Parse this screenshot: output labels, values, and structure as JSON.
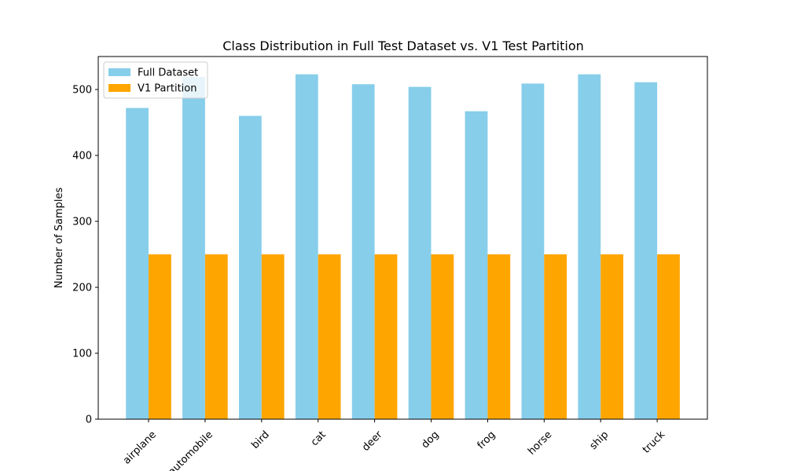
{
  "chart_data": {
    "type": "bar",
    "title": "Class Distribution in Full Test Dataset vs. V1 Test Partition",
    "xlabel": "",
    "ylabel": "Number of Samples",
    "categories": [
      "airplane",
      "automobile",
      "bird",
      "cat",
      "deer",
      "dog",
      "frog",
      "horse",
      "ship",
      "truck"
    ],
    "series": [
      {
        "name": "Full Dataset",
        "color": "#87CEEB",
        "values": [
          472,
          519,
          460,
          523,
          508,
          504,
          467,
          509,
          523,
          511
        ]
      },
      {
        "name": "V1 Partition",
        "color": "#FFA500",
        "values": [
          250,
          250,
          250,
          250,
          250,
          250,
          250,
          250,
          250,
          250
        ]
      }
    ],
    "ylim": [
      0,
      550
    ],
    "yticks": [
      0,
      100,
      200,
      300,
      400,
      500
    ],
    "grid": false,
    "legend": "top-left"
  }
}
